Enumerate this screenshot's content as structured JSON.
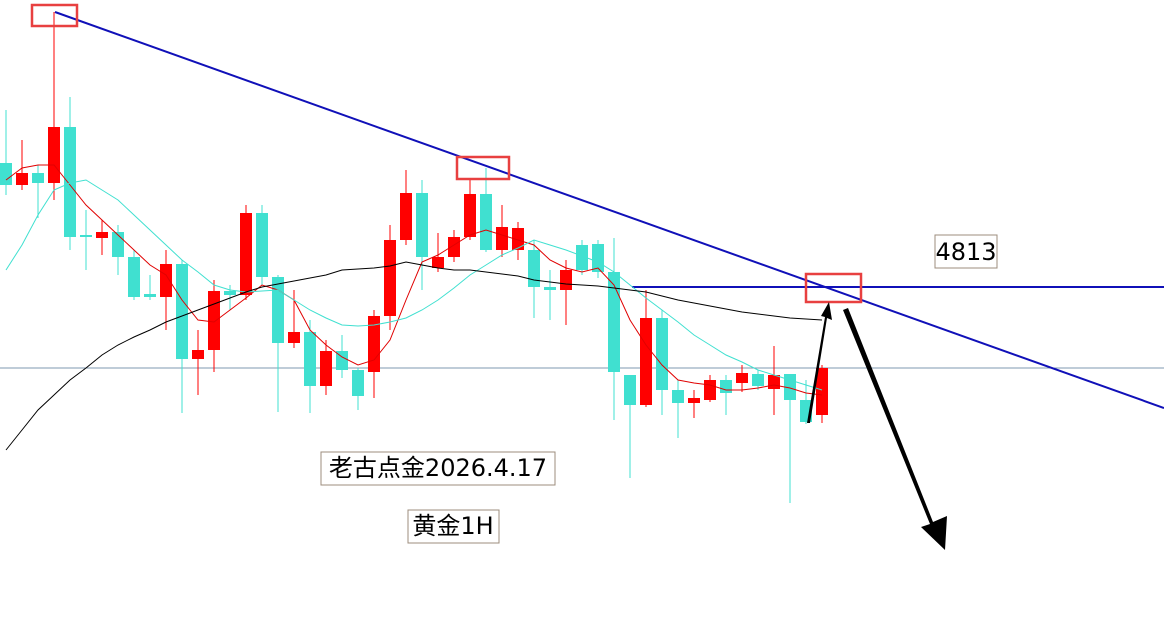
{
  "chart_data": {
    "type": "candlestick",
    "ylim": [
      4473,
      5100
    ],
    "open": [
      4937,
      4915,
      4927,
      4917,
      4973,
      4865,
      4862,
      4868,
      4843,
      4806,
      4803,
      4836,
      4741,
      4750,
      4809,
      4805,
      4887,
      4823,
      4757,
      4768,
      4714,
      4749,
      4730,
      4728,
      4784,
      4860,
      4907,
      4832,
      4843,
      4863,
      4906,
      4850,
      4850,
      4850,
      4813,
      4810,
      4855,
      4856,
      4828,
      4725,
      4695,
      4782,
      4710,
      4697,
      4700,
      4720,
      4717,
      4726,
      4711,
      4726,
      4700,
      4685
    ],
    "high": [
      4990,
      4960,
      4935,
      5088,
      5003,
      4890,
      4880,
      4875,
      4850,
      4825,
      4850,
      4840,
      4770,
      4820,
      4815,
      4895,
      4895,
      4825,
      4810,
      4780,
      4760,
      4765,
      4732,
      4790,
      4875,
      4930,
      4920,
      4867,
      4870,
      4920,
      4932,
      4895,
      4878,
      4860,
      4830,
      4840,
      4860,
      4860,
      4862,
      4725,
      4810,
      4790,
      4720,
      4710,
      4725,
      4725,
      4735,
      4730,
      4754,
      4726,
      4720,
      4735
    ],
    "low": [
      4905,
      4910,
      4882,
      4900,
      4850,
      4830,
      4845,
      4825,
      4800,
      4800,
      4770,
      4687,
      4705,
      4728,
      4790,
      4800,
      4815,
      4688,
      4752,
      4687,
      4705,
      4722,
      4690,
      4702,
      4770,
      4855,
      4810,
      4828,
      4838,
      4860,
      4848,
      4843,
      4840,
      4782,
      4780,
      4775,
      4825,
      4822,
      4680,
      4622,
      4693,
      4685,
      4662,
      4682,
      4698,
      4685,
      4708,
      4710,
      4685,
      4597,
      4676,
      4677
    ],
    "close": [
      4915,
      4927,
      4917,
      4973,
      4863,
      4863,
      4868,
      4843,
      4803,
      4803,
      4836,
      4741,
      4750,
      4809,
      4805,
      4887,
      4823,
      4757,
      4768,
      4714,
      4749,
      4730,
      4704,
      4784,
      4860,
      4907,
      4843,
      4843,
      4863,
      4906,
      4850,
      4873,
      4872,
      4813,
      4810,
      4830,
      4830,
      4828,
      4728,
      4695,
      4782,
      4710,
      4697,
      4702,
      4720,
      4707,
      4727,
      4714,
      4725,
      4700,
      4678,
      4732
    ],
    "up_color": "#ff0000",
    "down_color": "#40e0d0",
    "lines": [
      {
        "color": "#e00000",
        "values": [
          4920,
          4932,
          4935,
          4935,
          4915,
          4895,
          4880,
          4865,
          4850,
          4835,
          4825,
          4800,
          4780,
          4778,
          4790,
          4802,
          4815,
          4810,
          4800,
          4770,
          4755,
          4743,
          4735,
          4740,
          4760,
          4800,
          4838,
          4845,
          4855,
          4865,
          4870,
          4865,
          4860,
          4855,
          4840,
          4832,
          4828,
          4832,
          4815,
          4780,
          4755,
          4735,
          4720,
          4717,
          4715,
          4710,
          4710,
          4712,
          4715,
          4712,
          4707,
          4705
        ]
      },
      {
        "color": "#40e0d0",
        "values": [
          4830,
          4855,
          4885,
          4910,
          4917,
          4920,
          4910,
          4900,
          4885,
          4870,
          4855,
          4840,
          4828,
          4815,
          4810,
          4808,
          4809,
          4810,
          4800,
          4790,
          4782,
          4775,
          4774,
          4775,
          4778,
          4782,
          4790,
          4800,
          4812,
          4825,
          4835,
          4845,
          4852,
          4860,
          4855,
          4850,
          4844,
          4838,
          4828,
          4815,
          4802,
          4790,
          4778,
          4765,
          4755,
          4745,
          4738,
          4730,
          4725,
          4720,
          4715,
          4710
        ]
      },
      {
        "color": "#000000",
        "values": [
          4650,
          4670,
          4690,
          4705,
          4720,
          4732,
          4745,
          4755,
          4763,
          4770,
          4778,
          4784,
          4790,
          4796,
          4802,
          4808,
          4813,
          4816,
          4819,
          4822,
          4825,
          4830,
          4831,
          4832,
          4834,
          4838,
          4835,
          4832,
          4830,
          4830,
          4828,
          4826,
          4824,
          4820,
          4818,
          4816,
          4815,
          4814,
          4812,
          4810,
          4808,
          4804,
          4800,
          4797,
          4794,
          4791,
          4788,
          4786,
          4784,
          4782,
          4781,
          4780
        ]
      }
    ],
    "price_line": 4732,
    "level": 4813,
    "annotations": [
      "老古点金2026.4.17",
      "黄金1H"
    ]
  }
}
